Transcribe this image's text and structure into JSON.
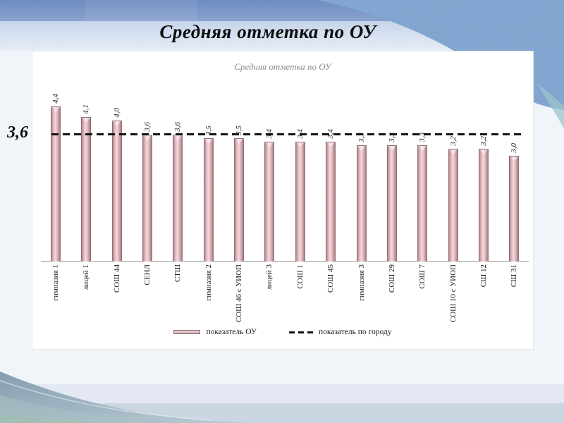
{
  "slide": {
    "title": "Средняя отметка по ОУ"
  },
  "chart": {
    "city_line_label": "3,6"
  },
  "chart_data": {
    "type": "bar",
    "title": "Средняя отметка по ОУ",
    "categories": [
      "гимназия 1",
      "лицей 1",
      "СОШ 44",
      "СЕНЛ",
      "СТШ",
      "гимназия 2",
      "СОШ 46 с УИОП",
      "лицей 3",
      "СОШ 1",
      "СОШ 45",
      "гимназия 3",
      "СОШ 29",
      "СОШ 7",
      "СОШ 10 с УИОП",
      "СШ 12",
      "СШ 31"
    ],
    "series": [
      {
        "name": "показатель ОУ",
        "type": "bar",
        "values": [
          4.4,
          4.1,
          4.0,
          3.6,
          3.6,
          3.5,
          3.5,
          3.4,
          3.4,
          3.4,
          3.3,
          3.3,
          3.3,
          3.2,
          3.2,
          3.0
        ]
      },
      {
        "name": "показатель по городу",
        "type": "reference-line",
        "value": 3.6,
        "style": "dashed"
      }
    ],
    "value_labels": [
      "4,4",
      "4,1",
      "4,0",
      "3,6",
      "3,6",
      "3,5",
      "3,5",
      "3,4",
      "3,4",
      "3,4",
      "3,3",
      "3,3",
      "3,3",
      "3,2",
      "3,2",
      "3,0"
    ],
    "xlabel": "",
    "ylabel": "",
    "ylim": [
      0,
      4.6
    ],
    "grid": false,
    "legend_position": "bottom",
    "value_label_rotation": 90,
    "category_label_rotation": 90
  },
  "colors": {
    "bar_fill": "#e3bcc2",
    "bar_edge": "#8d7378",
    "reference_line": "#141414",
    "banner_blue": "#7e9fce",
    "banner_band": "#ccd8ec",
    "chart_title_color": "#8c8c8c",
    "wave_teal": "#8fa9b8"
  }
}
